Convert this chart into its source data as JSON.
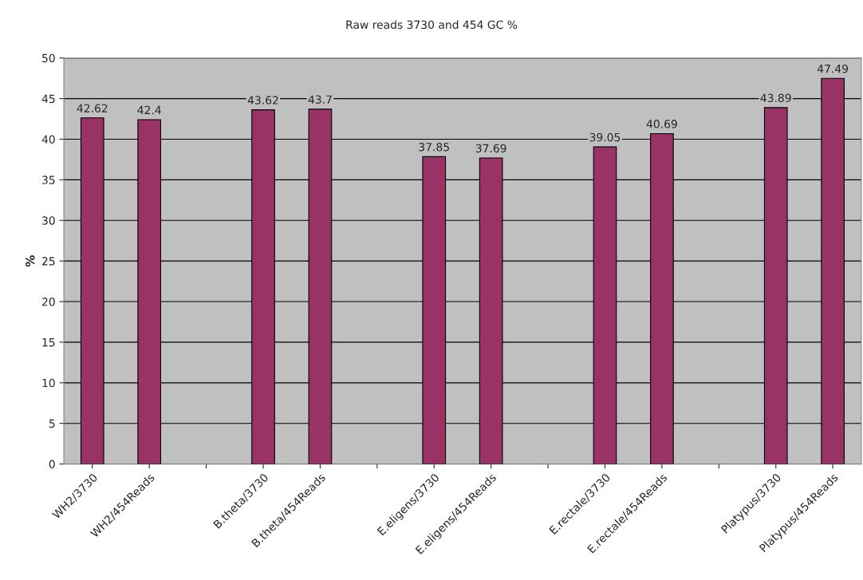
{
  "chart_data": {
    "type": "bar",
    "title": "Raw reads 3730 and 454 GC %",
    "ylabel": "%",
    "categories": [
      "WH2/3730",
      "WH2/454Reads",
      null,
      "B.theta/3730",
      "B.theta/454Reads",
      null,
      "E.eligens/3730",
      "E.eligens/454Reads",
      null,
      "E.rectale/3730",
      "E.rectale/454Reads",
      null,
      "Platypus/3730",
      "Platypus/454Reads"
    ],
    "values": [
      42.62,
      42.4,
      null,
      43.62,
      43.7,
      null,
      37.85,
      37.69,
      null,
      39.05,
      40.69,
      null,
      43.89,
      47.49
    ],
    "color": "#993366",
    "ylim": [
      0,
      50
    ],
    "yticks": [
      0,
      5,
      10,
      15,
      20,
      25,
      30,
      35,
      40,
      45,
      50
    ],
    "grid": "y",
    "data_labels": true
  }
}
